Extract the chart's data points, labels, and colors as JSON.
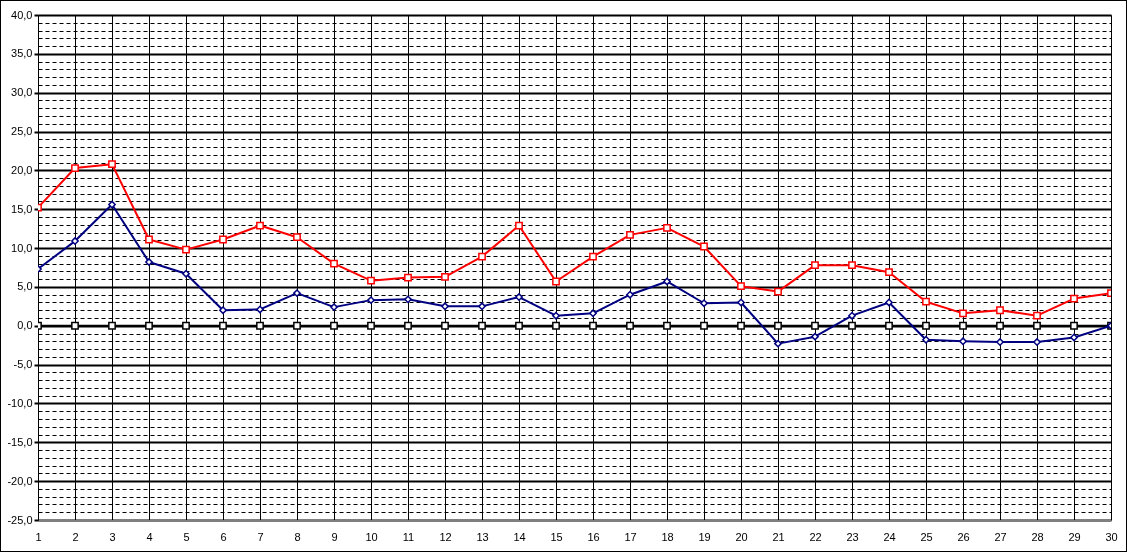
{
  "chart_data": {
    "type": "line",
    "x": [
      1,
      2,
      3,
      4,
      5,
      6,
      7,
      8,
      9,
      10,
      11,
      12,
      13,
      14,
      15,
      16,
      17,
      18,
      19,
      20,
      21,
      22,
      23,
      24,
      25,
      26,
      27,
      28,
      29,
      30
    ],
    "xlim": [
      1,
      30
    ],
    "xticks": [
      1,
      2,
      3,
      4,
      5,
      6,
      7,
      8,
      9,
      10,
      11,
      12,
      13,
      14,
      15,
      16,
      17,
      18,
      19,
      20,
      21,
      22,
      23,
      24,
      25,
      26,
      27,
      28,
      29,
      30
    ],
    "ylim": [
      -25,
      40
    ],
    "yticks": [
      {
        "value": -25,
        "label": "-25,0"
      },
      {
        "value": -24,
        "label": null
      },
      {
        "value": -23,
        "label": null
      },
      {
        "value": -22,
        "label": null
      },
      {
        "value": -21,
        "label": null
      },
      {
        "value": -20,
        "label": "-20,0"
      },
      {
        "value": -19,
        "label": null
      },
      {
        "value": -18,
        "label": null
      },
      {
        "value": -17,
        "label": null
      },
      {
        "value": -16,
        "label": null
      },
      {
        "value": -15,
        "label": "-15,0"
      },
      {
        "value": -14,
        "label": null
      },
      {
        "value": -13,
        "label": null
      },
      {
        "value": -12,
        "label": null
      },
      {
        "value": -11,
        "label": null
      },
      {
        "value": -10,
        "label": "-10,0"
      },
      {
        "value": -9,
        "label": null
      },
      {
        "value": -8,
        "label": null
      },
      {
        "value": -7,
        "label": null
      },
      {
        "value": -6,
        "label": null
      },
      {
        "value": -5,
        "label": "-5,0"
      },
      {
        "value": -4,
        "label": null
      },
      {
        "value": -3,
        "label": null
      },
      {
        "value": -2,
        "label": null
      },
      {
        "value": -1,
        "label": null
      },
      {
        "value": 0,
        "label": "0,0"
      },
      {
        "value": 1,
        "label": null
      },
      {
        "value": 2,
        "label": null
      },
      {
        "value": 3,
        "label": null
      },
      {
        "value": 4,
        "label": null
      },
      {
        "value": 5,
        "label": "5,0"
      },
      {
        "value": 6,
        "label": null
      },
      {
        "value": 7,
        "label": null
      },
      {
        "value": 8,
        "label": null
      },
      {
        "value": 9,
        "label": null
      },
      {
        "value": 10,
        "label": "10,0"
      },
      {
        "value": 11,
        "label": null
      },
      {
        "value": 12,
        "label": null
      },
      {
        "value": 13,
        "label": null
      },
      {
        "value": 14,
        "label": null
      },
      {
        "value": 15,
        "label": "15,0"
      },
      {
        "value": 16,
        "label": null
      },
      {
        "value": 17,
        "label": null
      },
      {
        "value": 18,
        "label": null
      },
      {
        "value": 19,
        "label": null
      },
      {
        "value": 20,
        "label": "20,0"
      },
      {
        "value": 21,
        "label": null
      },
      {
        "value": 22,
        "label": null
      },
      {
        "value": 23,
        "label": null
      },
      {
        "value": 24,
        "label": null
      },
      {
        "value": 25,
        "label": "25,0"
      },
      {
        "value": 26,
        "label": null
      },
      {
        "value": 27,
        "label": null
      },
      {
        "value": 28,
        "label": null
      },
      {
        "value": 29,
        "label": null
      },
      {
        "value": 30,
        "label": "30,0"
      },
      {
        "value": 31,
        "label": null
      },
      {
        "value": 32,
        "label": null
      },
      {
        "value": 33,
        "label": null
      },
      {
        "value": 34,
        "label": null
      },
      {
        "value": 35,
        "label": "35,0"
      },
      {
        "value": 36,
        "label": null
      },
      {
        "value": 37,
        "label": null
      },
      {
        "value": 38,
        "label": null
      },
      {
        "value": 39,
        "label": null
      },
      {
        "value": 40,
        "label": "40,0"
      }
    ],
    "grid": true,
    "series": [
      {
        "color": "#000000",
        "marker": "square",
        "values": [
          0,
          0,
          0,
          0,
          0,
          0,
          0,
          0,
          0,
          0,
          0,
          0,
          0,
          0,
          0,
          0,
          0,
          0,
          0,
          0,
          0,
          0,
          0,
          0,
          0,
          0,
          0,
          0,
          0,
          0
        ]
      },
      {
        "color": "#ff0000",
        "marker": "square",
        "values": [
          15.2,
          20.3,
          20.8,
          11.1,
          9.8,
          11.1,
          12.9,
          11.4,
          8.0,
          5.8,
          6.2,
          6.3,
          8.9,
          12.9,
          5.7,
          8.9,
          11.7,
          12.6,
          10.2,
          5.1,
          4.4,
          7.8,
          7.8,
          6.9,
          3.1,
          1.6,
          2.0,
          1.3,
          3.5,
          4.2
        ]
      },
      {
        "color": "#000080",
        "marker": "diamond",
        "values": [
          7.3,
          10.9,
          15.6,
          8.2,
          6.7,
          2.0,
          2.1,
          4.2,
          2.4,
          3.3,
          3.4,
          2.5,
          2.5,
          3.7,
          1.3,
          1.6,
          4.0,
          5.7,
          2.9,
          3.0,
          -2.3,
          -1.4,
          1.3,
          3.0,
          -1.8,
          -2.0,
          -2.1,
          -2.1,
          -1.5,
          0.0
        ]
      }
    ]
  }
}
